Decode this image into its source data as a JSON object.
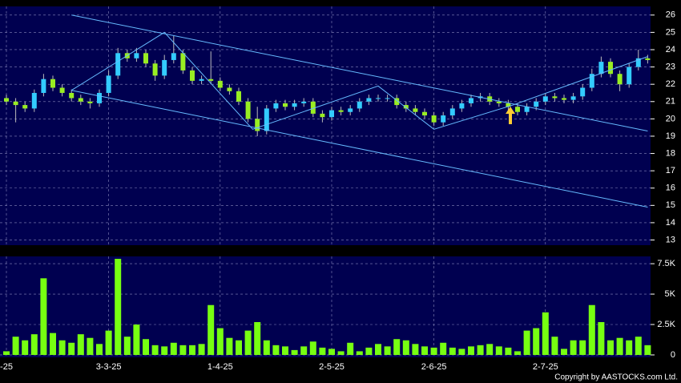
{
  "chart_data": [
    {
      "type": "candlestick",
      "categories": [
        "-25",
        null,
        null,
        null,
        null,
        null,
        null,
        null,
        null,
        null,
        null,
        "3-3-25",
        null,
        null,
        null,
        null,
        null,
        null,
        null,
        null,
        null,
        null,
        null,
        "1-4-25",
        null,
        null,
        null,
        null,
        null,
        null,
        null,
        null,
        null,
        null,
        null,
        "2-5-25",
        null,
        null,
        null,
        null,
        null,
        null,
        null,
        null,
        null,
        null,
        "2-6-25",
        null,
        null,
        null,
        null,
        null,
        null,
        null,
        null,
        null,
        null,
        null,
        "2-7-25",
        null,
        null,
        null,
        null,
        null,
        null,
        null,
        null,
        null,
        null,
        null
      ],
      "open": [
        21.2,
        21,
        20.8,
        20.6,
        21.5,
        22.3,
        21.8,
        21.5,
        21.2,
        21,
        20.9,
        21.5,
        22.5,
        23.8,
        23.5,
        23.8,
        23.2,
        22.5,
        23.4,
        23.8,
        22.8,
        22.2,
        22.3,
        22.2,
        21.8,
        21.6,
        21,
        20,
        19.3,
        20.6,
        20.9,
        20.7,
        20.9,
        21,
        20.3,
        20.1,
        20.5,
        20.4,
        20.6,
        21,
        21.2,
        21.2,
        21.2,
        20.8,
        20.6,
        20.4,
        20.2,
        19.8,
        20.2,
        20.6,
        20.9,
        21.2,
        21.3,
        21,
        20.9,
        20.7,
        20.4,
        20.7,
        21,
        21.3,
        21.2,
        21.1,
        21.3,
        21.8,
        22.6,
        23.3,
        22.6,
        22,
        23,
        23.5
      ],
      "high": [
        21.4,
        21.2,
        21,
        21.7,
        22.6,
        22.5,
        22,
        21.7,
        21.4,
        21.2,
        21.7,
        22.8,
        24.1,
        24,
        24.1,
        24,
        23.4,
        23.7,
        24.8,
        24,
        23,
        22.5,
        23.9,
        22.4,
        22,
        21.8,
        21.2,
        20.7,
        20.8,
        21.1,
        21.1,
        21.1,
        21.2,
        21.2,
        20.5,
        20.7,
        20.7,
        20.8,
        21.2,
        21.4,
        21.4,
        21.4,
        21.4,
        21,
        20.8,
        20.6,
        20.4,
        20.4,
        20.8,
        21.1,
        21.4,
        21.5,
        21.5,
        21.2,
        21.1,
        20.9,
        20.9,
        21.2,
        21.5,
        21.5,
        21.4,
        21.5,
        22,
        22.9,
        23.6,
        23.5,
        22.8,
        23.2,
        24,
        23.7
      ],
      "low": [
        20.8,
        19.8,
        20.4,
        20.4,
        21.3,
        21.6,
        21.3,
        21,
        20.8,
        20.6,
        20.7,
        21.3,
        22.3,
        23.3,
        23.3,
        23,
        22.2,
        22.3,
        23.2,
        22.6,
        22,
        22,
        22,
        21.6,
        21.4,
        20.8,
        19.8,
        19,
        19.1,
        20.4,
        20.5,
        20.5,
        20.7,
        20.1,
        19.8,
        19.9,
        20.2,
        20.2,
        20.4,
        20.8,
        21,
        21,
        20.6,
        20.4,
        20.2,
        20,
        19.6,
        19.6,
        20,
        20.4,
        20.7,
        21,
        20.8,
        20.7,
        20.5,
        20.2,
        20.2,
        20.5,
        20.8,
        21,
        20.9,
        20.9,
        21.1,
        21.6,
        22.4,
        22.4,
        21.6,
        21.8,
        22.8,
        23.2
      ],
      "close": [
        21,
        20.8,
        20.6,
        21.5,
        22.3,
        21.8,
        21.5,
        21.2,
        21,
        20.9,
        21.5,
        22.5,
        23.8,
        23.5,
        23.8,
        23.2,
        22.5,
        23.4,
        23.8,
        22.8,
        22.2,
        22.3,
        22.2,
        21.8,
        21.6,
        21,
        20,
        19.3,
        20.6,
        20.9,
        20.7,
        20.9,
        21,
        20.3,
        20.1,
        20.5,
        20.4,
        20.6,
        21,
        21.2,
        21.2,
        21.2,
        20.8,
        20.6,
        20.4,
        20.2,
        19.8,
        20.2,
        20.6,
        20.9,
        21.2,
        21.3,
        21,
        20.9,
        20.7,
        20.4,
        20.7,
        21,
        21.3,
        21.2,
        21.1,
        21.3,
        21.8,
        22.6,
        23.3,
        22.6,
        22,
        23,
        23.5,
        23.4
      ],
      "up_color": "#33ccff",
      "down_color": "#99ee22",
      "trendlines": [
        [
          [
            7,
            26
          ],
          [
            69,
            19.3
          ]
        ],
        [
          [
            7,
            21.65
          ],
          [
            69,
            14.9
          ]
        ],
        [
          [
            7,
            21.65
          ],
          [
            17,
            25
          ],
          [
            26.5,
            19.4
          ],
          [
            40,
            21.9
          ],
          [
            46,
            19.4
          ],
          [
            54.5,
            20.8
          ],
          [
            69,
            23.6
          ]
        ]
      ],
      "trendline_color": "#66bbff",
      "ylim": [
        12.7,
        26.5
      ],
      "yticks": [
        13,
        14,
        15,
        16,
        17,
        18,
        19,
        20,
        21,
        22,
        23,
        24,
        25,
        26
      ],
      "grid": true
    },
    {
      "type": "bar",
      "color": "#77ff11",
      "values": [
        300,
        1500,
        1200,
        1700,
        6300,
        1800,
        1200,
        1000,
        1700,
        1400,
        900,
        2000,
        7900,
        1500,
        2500,
        1300,
        800,
        700,
        1000,
        800,
        800,
        900,
        4100,
        2200,
        1400,
        1200,
        2000,
        2700,
        1200,
        800,
        700,
        400,
        700,
        1100,
        600,
        500,
        300,
        1000,
        300,
        600,
        900,
        700,
        1300,
        1200,
        900,
        700,
        600,
        1000,
        600,
        500,
        700,
        800,
        900,
        700,
        600,
        300,
        2000,
        2200,
        3500,
        1500,
        500,
        1200,
        1200,
        4100,
        2700,
        1200,
        1400,
        1200,
        1500,
        800
      ],
      "ylim": [
        -200,
        8100
      ],
      "yticks": [
        0,
        {
          "value": 2500,
          "label": "2.5K"
        },
        {
          "value": 5000,
          "label": "5K"
        },
        {
          "value": 7500,
          "label": "7.5K"
        }
      ],
      "grid": true
    }
  ],
  "copyright": "Copyright by AASTOCKS.com Ltd."
}
